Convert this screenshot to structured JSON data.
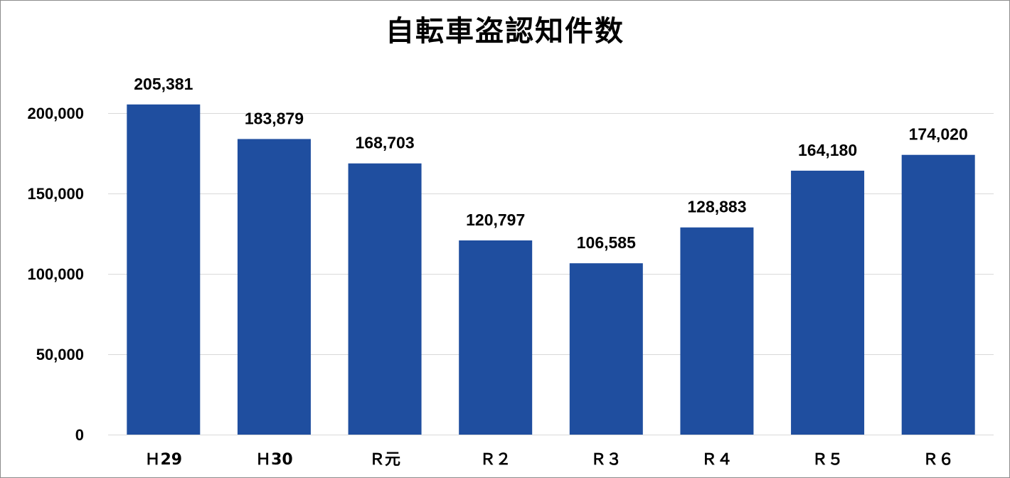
{
  "chart_data": {
    "type": "bar",
    "title": "自転車盗認知件数",
    "xlabel": "",
    "ylabel": "",
    "categories": [
      "H29",
      "H30",
      "R元",
      "R2",
      "R3",
      "R4",
      "R5",
      "R6"
    ],
    "category_display": [
      "Ｈ29",
      "Ｈ30",
      "Ｒ元",
      "Ｒ２",
      "Ｒ３",
      "Ｒ４",
      "Ｒ５",
      "Ｒ６"
    ],
    "values": [
      205381,
      183879,
      168703,
      120797,
      106585,
      128883,
      164180,
      174020
    ],
    "value_labels": [
      "205,381",
      "183,879",
      "168,703",
      "120,797",
      "106,585",
      "128,883",
      "164,180",
      "174,020"
    ],
    "ylim": [
      0,
      200000
    ],
    "yticks": [
      0,
      50000,
      100000,
      150000,
      200000
    ],
    "ytick_labels": [
      "0",
      "50,000",
      "100,000",
      "150,000",
      "200,000"
    ],
    "grid": true,
    "legend": "none",
    "bar_color": "#1F4E9F",
    "grid_color": "#D9D9D9"
  }
}
